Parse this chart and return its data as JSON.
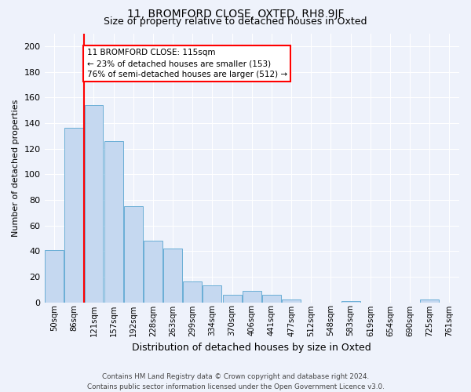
{
  "title": "11, BROMFORD CLOSE, OXTED, RH8 9JF",
  "subtitle": "Size of property relative to detached houses in Oxted",
  "xlabel": "Distribution of detached houses by size in Oxted",
  "ylabel": "Number of detached properties",
  "bin_labels": [
    "50sqm",
    "86sqm",
    "121sqm",
    "157sqm",
    "192sqm",
    "228sqm",
    "263sqm",
    "299sqm",
    "334sqm",
    "370sqm",
    "406sqm",
    "441sqm",
    "477sqm",
    "512sqm",
    "548sqm",
    "583sqm",
    "619sqm",
    "654sqm",
    "690sqm",
    "725sqm",
    "761sqm"
  ],
  "bar_values": [
    41,
    136,
    154,
    126,
    75,
    48,
    42,
    16,
    13,
    6,
    9,
    6,
    2,
    0,
    0,
    1,
    0,
    0,
    0,
    2,
    0
  ],
  "bar_color": "#c5d8f0",
  "bar_edge_color": "#6aaed6",
  "vline_index": 2,
  "vline_color": "red",
  "annotation_text": "11 BROMFORD CLOSE: 115sqm\n← 23% of detached houses are smaller (153)\n76% of semi-detached houses are larger (512) →",
  "annotation_box_color": "white",
  "annotation_box_edge": "red",
  "footnote": "Contains HM Land Registry data © Crown copyright and database right 2024.\nContains public sector information licensed under the Open Government Licence v3.0.",
  "bg_color": "#eef2fb",
  "ylim": [
    0,
    210
  ],
  "yticks": [
    0,
    20,
    40,
    60,
    80,
    100,
    120,
    140,
    160,
    180,
    200
  ],
  "title_fontsize": 10,
  "subtitle_fontsize": 9,
  "ylabel_fontsize": 8,
  "xlabel_fontsize": 9
}
